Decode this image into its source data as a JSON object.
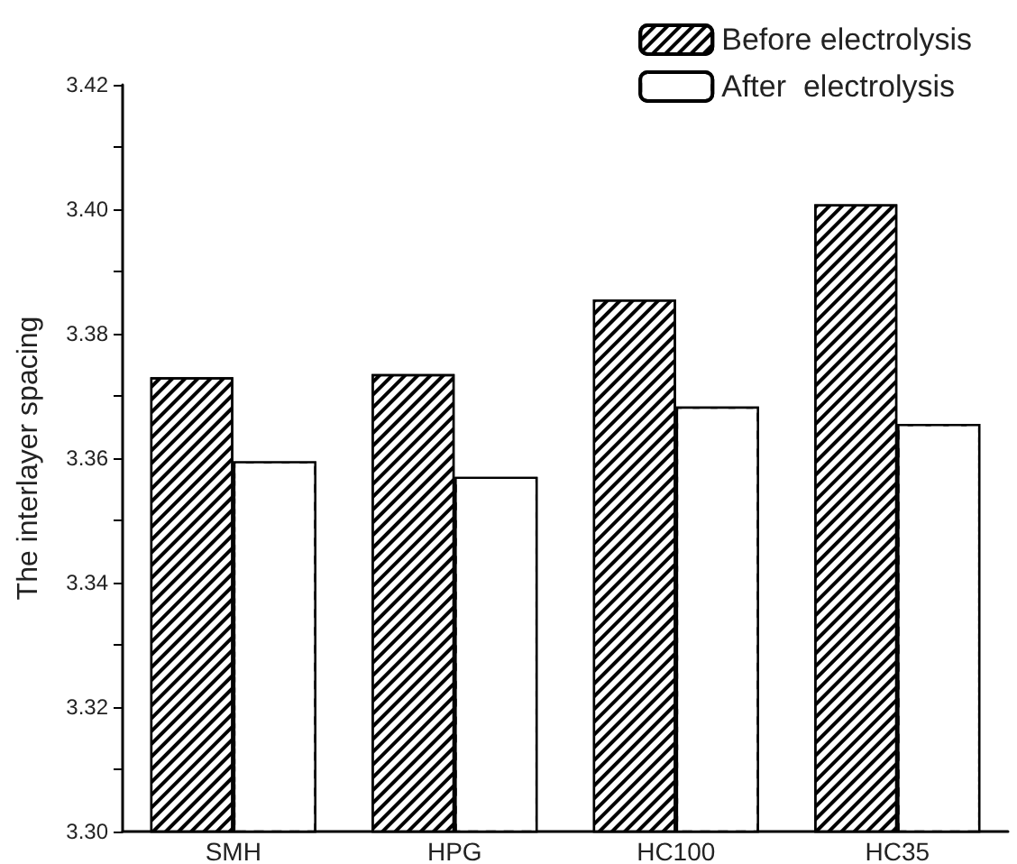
{
  "chart_data": {
    "type": "bar",
    "ylabel": "The interlayer spacing",
    "categories": [
      "SMH",
      "HPG",
      "HC100",
      "HC35"
    ],
    "series": [
      {
        "name": "Before electrolysis",
        "color": "#ffffff",
        "values": [
          3.373,
          3.3735,
          3.3855,
          3.4008
        ]
      },
      {
        "name": "After  electrolysis",
        "color": "#ffffff",
        "values": [
          3.3595,
          3.357,
          3.3683,
          3.3655
        ]
      }
    ],
    "ylim": [
      3.3,
      3.42
    ],
    "yticks": [
      {
        "value": 3.3,
        "label": "3.30"
      },
      {
        "value": 3.31,
        "label": null
      },
      {
        "value": 3.32,
        "label": "3.32"
      },
      {
        "value": 3.33,
        "label": null
      },
      {
        "value": 3.34,
        "label": "3.34"
      },
      {
        "value": 3.35,
        "label": null
      },
      {
        "value": 3.36,
        "label": "3.36"
      },
      {
        "value": 3.37,
        "label": null
      },
      {
        "value": 3.38,
        "label": "3.38"
      },
      {
        "value": 3.39,
        "label": null
      },
      {
        "value": 3.4,
        "label": "3.40"
      },
      {
        "value": 3.41,
        "label": null
      },
      {
        "value": 3.42,
        "label": "3.42"
      }
    ],
    "grid": false,
    "legend": "top right"
  }
}
